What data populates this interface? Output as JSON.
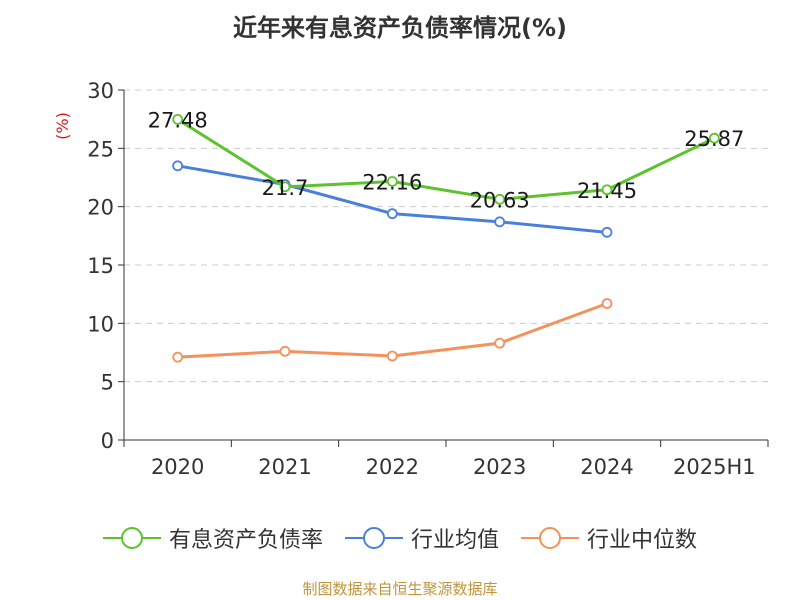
{
  "chart_data": {
    "type": "line",
    "title": "近年来有息资产负债率情况(%)",
    "ylabel": "(%)",
    "xlabel": "",
    "categories": [
      "2020",
      "2021",
      "2022",
      "2023",
      "2024",
      "2025H1"
    ],
    "ylim": [
      0,
      30
    ],
    "yticks": [
      0,
      5,
      10,
      15,
      20,
      25,
      30
    ],
    "grid": true,
    "legend_position": "bottom",
    "series": [
      {
        "name": "有息资产负债率",
        "color": "#5cc22e",
        "values": [
          27.48,
          21.7,
          22.16,
          20.63,
          21.45,
          25.87
        ],
        "labels": [
          "27.48",
          "21.7",
          "22.16",
          "20.63",
          "21.45",
          "25.87"
        ]
      },
      {
        "name": "行业均值",
        "color": "#4a7fdc",
        "values": [
          23.5,
          21.9,
          19.4,
          18.7,
          17.8,
          null
        ]
      },
      {
        "name": "行业中位数",
        "color": "#f5915a",
        "values": [
          7.1,
          7.6,
          7.2,
          8.3,
          11.7,
          null
        ]
      }
    ]
  },
  "footer": {
    "source": "制图数据来自恒生聚源数据库"
  },
  "colors": {
    "ylabel": "#d11a1a",
    "axis": "#333333",
    "grid": "#cccccc"
  }
}
